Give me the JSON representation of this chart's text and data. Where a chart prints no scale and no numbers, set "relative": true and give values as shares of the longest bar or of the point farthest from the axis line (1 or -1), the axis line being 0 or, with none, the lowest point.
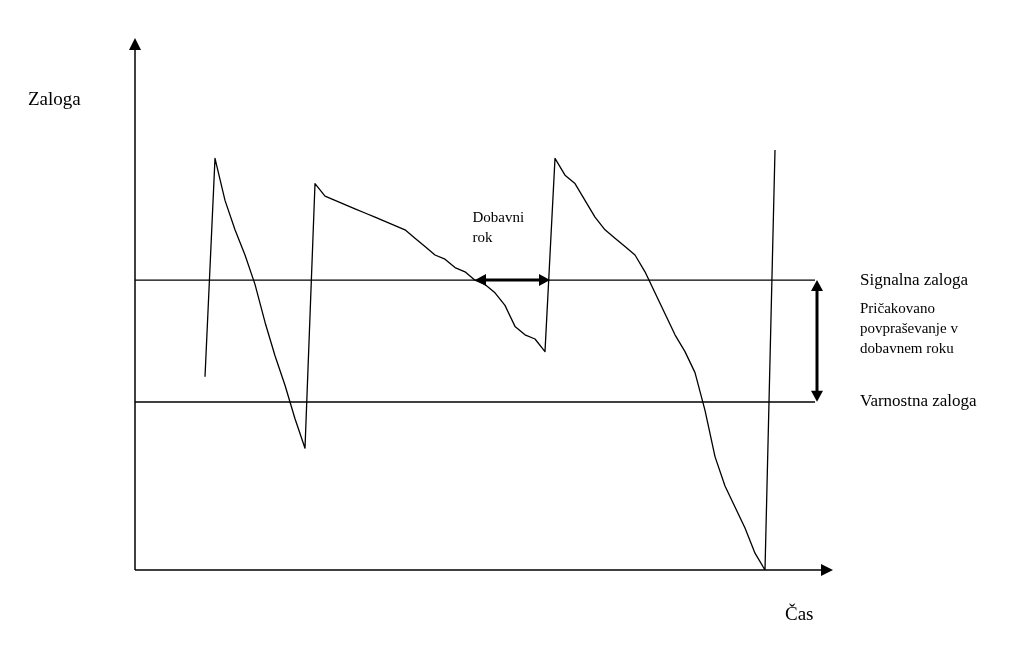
{
  "chart_data": {
    "type": "line",
    "relative": true,
    "xlabel": "Čas",
    "ylabel": "Zaloga",
    "categories": [
      null,
      null,
      null,
      null,
      null,
      null,
      null,
      null,
      null,
      null,
      null,
      null,
      null,
      null,
      null,
      null,
      null,
      null,
      null,
      null,
      null,
      null,
      null,
      null,
      null,
      null,
      null,
      null,
      null,
      null,
      null,
      null,
      null,
      null,
      null,
      null,
      null,
      null,
      null,
      null,
      null,
      null,
      null,
      null,
      null,
      null,
      null,
      null,
      null,
      null,
      null,
      null,
      null,
      null,
      null,
      null,
      null,
      null,
      null,
      null,
      null,
      null,
      null,
      null,
      null,
      null,
      null,
      null,
      null
    ],
    "series": [
      {
        "color": "#000000",
        "values": [
          null,
          null,
          null,
          null,
          null,
          null,
          null,
          0.46,
          0.98,
          0.88,
          0.81,
          0.75,
          0.68,
          0.59,
          0.51,
          0.44,
          0.36,
          0.29,
          0.92,
          0.89,
          0.88,
          0.87,
          0.86,
          0.85,
          0.84,
          0.83,
          0.82,
          0.81,
          0.79,
          0.77,
          0.75,
          0.74,
          0.72,
          0.71,
          0.69,
          0.68,
          0.66,
          0.63,
          0.58,
          0.56,
          0.55,
          0.52,
          0.98,
          0.94,
          0.92,
          0.88,
          0.84,
          0.81,
          0.79,
          0.77,
          0.75,
          0.71,
          0.66,
          0.61,
          0.56,
          0.52,
          0.47,
          0.38,
          0.27,
          0.2,
          0.15,
          0.1,
          0.04,
          0.0,
          1.0,
          null,
          null,
          null,
          null
        ]
      }
    ],
    "ref_lines": [
      {
        "axis": "y",
        "value": 0.69,
        "label": "Signalna zaloga",
        "color": "#000000"
      },
      {
        "axis": "y",
        "value": 0.4,
        "label": "Varnostna zaloga",
        "color": "#000000"
      }
    ],
    "annotations": [
      "Dobavni rok",
      "Pričakovano povpraševanje v dobavnem roku"
    ],
    "legend": false,
    "marker": "none",
    "line_style": "solid"
  }
}
